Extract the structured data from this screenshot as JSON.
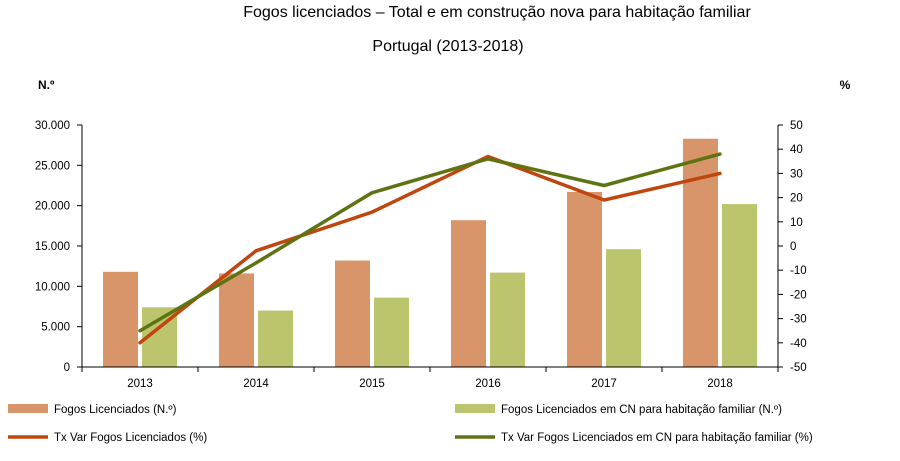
{
  "chart_data": {
    "type": "bar+line",
    "title": "Fogos licenciados – Total e em construção nova para habitação familiar",
    "subtitle": "Portugal (2013-2018)",
    "y_left_label": "N.º",
    "y_right_label": "%",
    "categories": [
      "2013",
      "2014",
      "2015",
      "2016",
      "2017",
      "2018"
    ],
    "y_left": {
      "min": 0,
      "max": 30000,
      "ticks": [
        0,
        5000,
        10000,
        15000,
        20000,
        25000,
        30000
      ],
      "tick_labels": [
        "0",
        "5.000",
        "10.000",
        "15.000",
        "20.000",
        "25.000",
        "30.000"
      ]
    },
    "y_right": {
      "min": -50,
      "max": 50,
      "ticks": [
        -50,
        -40,
        -30,
        -20,
        -10,
        0,
        10,
        20,
        30,
        40,
        50
      ],
      "tick_labels": [
        "-50",
        "-40",
        "-30",
        "-20",
        "-10",
        "0",
        "10",
        "20",
        "30",
        "40",
        "50"
      ]
    },
    "series": [
      {
        "name": "Fogos Licenciados (N.º)",
        "type": "bar",
        "axis": "left",
        "color": "#D9956A",
        "values": [
          11800,
          11600,
          13200,
          18200,
          21700,
          28300
        ]
      },
      {
        "name": "Fogos Licenciados em CN para habitação familiar (N.º)",
        "type": "bar",
        "axis": "left",
        "color": "#BCC46E",
        "values": [
          7400,
          7000,
          8600,
          11700,
          14600,
          20200
        ]
      },
      {
        "name": "Tx Var Fogos Licenciados (%)",
        "type": "line",
        "axis": "right",
        "color": "#C0460E",
        "values": [
          -40,
          -2,
          14,
          37,
          19,
          30
        ]
      },
      {
        "name": "Tx Var Fogos Licenciados em CN para habitação familiar (%)",
        "type": "line",
        "axis": "right",
        "color": "#5E7412",
        "values": [
          -35,
          -7,
          22,
          36,
          25,
          38
        ]
      }
    ],
    "legend": [
      "Fogos Licenciados (N.º)",
      "Fogos Licenciados em CN para habitação familiar (N.º)",
      "Tx Var Fogos Licenciados (%)",
      "Tx Var Fogos Licenciados em CN para habitação familiar (%)"
    ]
  }
}
